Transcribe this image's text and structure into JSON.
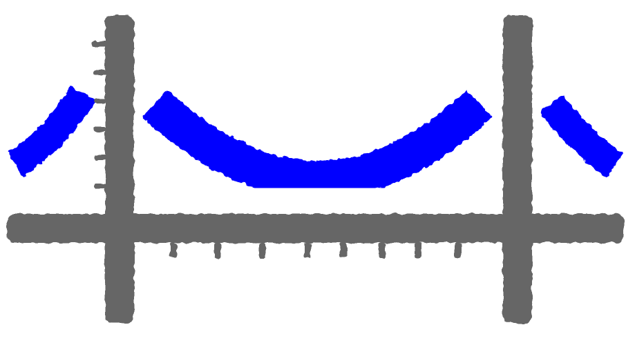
{
  "image": {
    "subject": "bridge-logo",
    "colors": {
      "background": "#ffffff",
      "structure": "#666666",
      "cable": "#0000ff"
    },
    "icons": [
      "left-tower-icon",
      "right-tower-icon",
      "deck-icon",
      "main-cable-icon",
      "side-cable-icon",
      "suspender-icon"
    ]
  }
}
